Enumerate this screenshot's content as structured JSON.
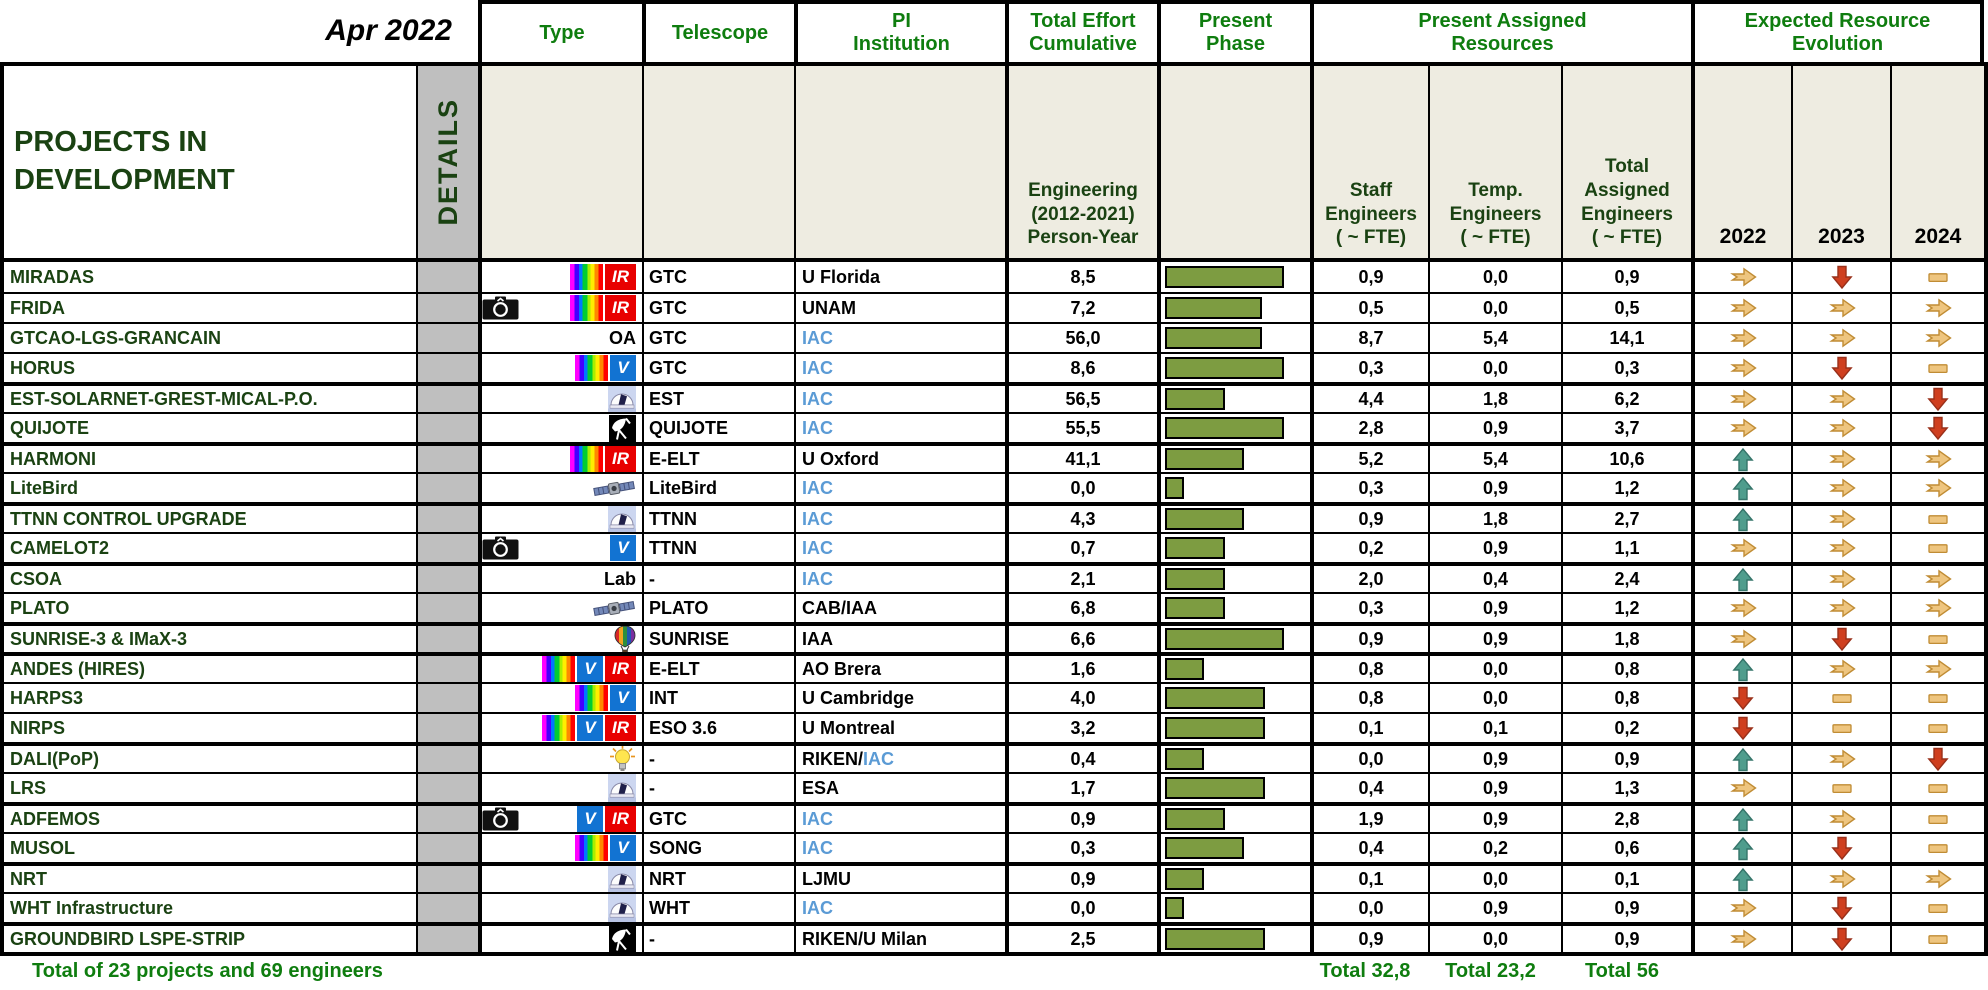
{
  "header": {
    "date_label": "Apr 2022",
    "title": "PROJECTS IN\nDEVELOPMENT",
    "details_label": "DETAILS",
    "columns": {
      "type": "Type",
      "telescope": "Telescope",
      "pi": "PI\nInstitution",
      "effort": "Total Effort\nCumulative",
      "phase": "Present\nPhase",
      "resources": "Present Assigned\nResources",
      "evolution": "Expected Resource\nEvolution"
    },
    "subcolumns": {
      "effort_sub": "Engineering\n(2012-2021)\nPerson-Year",
      "staff": "Staff\nEngineers\n( ~ FTE)",
      "temp": "Temp.\nEngineers\n( ~ FTE)",
      "total": "Total\nAssigned\nEngineers\n( ~ FTE)",
      "y2022": "2022",
      "y2023": "2023",
      "y2024": "2024"
    }
  },
  "colors": {
    "header_green": "#0f7d0f",
    "project_green": "#1a4212",
    "iac_blue": "#5b9bd5",
    "bar_green": "#7d9c41",
    "arrow_tan": "#eec57f",
    "arrow_red": "#cf3f1f",
    "arrow_teal": "#4f9d8d",
    "subheader_beige": "#eeece1",
    "details_gray": "#bfbfbf"
  },
  "rows": [
    {
      "name": "MIRADAS",
      "icons": [
        "spectrum",
        "ir"
      ],
      "type_text": "",
      "telescope": "GTC",
      "pi_black": "U Florida",
      "pi_blue": "",
      "effort": "8,5",
      "phase_pct": 80,
      "staff": "0,9",
      "temp": "0,0",
      "total": "0,9",
      "y2022": "right",
      "y2023": "down",
      "y2024": "flat",
      "group": false
    },
    {
      "name": "FRIDA",
      "icons": [
        "camera",
        "spectrum",
        "ir"
      ],
      "type_text": "",
      "telescope": "GTC",
      "pi_black": "UNAM",
      "pi_blue": "",
      "effort": "7,2",
      "phase_pct": 65,
      "staff": "0,5",
      "temp": "0,0",
      "total": "0,5",
      "y2022": "right",
      "y2023": "right",
      "y2024": "right",
      "group": false
    },
    {
      "name": "GTCAO-LGS-GRANCAIN",
      "icons": [],
      "type_text": "OA",
      "telescope": "GTC",
      "pi_black": "",
      "pi_blue": "IAC",
      "effort": "56,0",
      "phase_pct": 65,
      "staff": "8,7",
      "temp": "5,4",
      "total": "14,1",
      "y2022": "right",
      "y2023": "right",
      "y2024": "right",
      "group": false
    },
    {
      "name": "HORUS",
      "icons": [
        "spectrum",
        "v"
      ],
      "type_text": "",
      "telescope": "GTC",
      "pi_black": "",
      "pi_blue": "IAC",
      "effort": "8,6",
      "phase_pct": 80,
      "staff": "0,3",
      "temp": "0,0",
      "total": "0,3",
      "y2022": "right",
      "y2023": "down",
      "y2024": "flat",
      "group": false
    },
    {
      "name": "EST-SOLARNET-GREST-MICAL-P.O.",
      "icons": [
        "dome"
      ],
      "type_text": "",
      "telescope": "EST",
      "pi_black": "",
      "pi_blue": "IAC",
      "effort": "56,5",
      "phase_pct": 40,
      "staff": "4,4",
      "temp": "1,8",
      "total": "6,2",
      "y2022": "right",
      "y2023": "right",
      "y2024": "down",
      "group": true
    },
    {
      "name": "QUIJOTE",
      "icons": [
        "dish"
      ],
      "type_text": "",
      "telescope": "QUIJOTE",
      "pi_black": "",
      "pi_blue": "IAC",
      "effort": "55,5",
      "phase_pct": 80,
      "staff": "2,8",
      "temp": "0,9",
      "total": "3,7",
      "y2022": "right",
      "y2023": "right",
      "y2024": "down",
      "group": false
    },
    {
      "name": "HARMONI",
      "icons": [
        "spectrum",
        "ir"
      ],
      "type_text": "",
      "telescope": "E-ELT",
      "pi_black": "U Oxford",
      "pi_blue": "",
      "effort": "41,1",
      "phase_pct": 53,
      "staff": "5,2",
      "temp": "5,4",
      "total": "10,6",
      "y2022": "up",
      "y2023": "right",
      "y2024": "right",
      "group": true
    },
    {
      "name": "LiteBird",
      "icons": [
        "satellite"
      ],
      "type_text": "",
      "telescope": "LiteBird",
      "pi_black": "",
      "pi_blue": "IAC",
      "effort": "0,0",
      "phase_pct": 13,
      "staff": "0,3",
      "temp": "0,9",
      "total": "1,2",
      "y2022": "up",
      "y2023": "right",
      "y2024": "right",
      "group": false
    },
    {
      "name": "TTNN CONTROL UPGRADE",
      "icons": [
        "dome"
      ],
      "type_text": "",
      "telescope": "TTNN",
      "pi_black": "",
      "pi_blue": "IAC",
      "effort": "4,3",
      "phase_pct": 53,
      "staff": "0,9",
      "temp": "1,8",
      "total": "2,7",
      "y2022": "up",
      "y2023": "right",
      "y2024": "flat",
      "group": true
    },
    {
      "name": "CAMELOT2",
      "icons": [
        "camera",
        "v"
      ],
      "type_text": "",
      "telescope": "TTNN",
      "pi_black": "",
      "pi_blue": "IAC",
      "effort": "0,7",
      "phase_pct": 40,
      "staff": "0,2",
      "temp": "0,9",
      "total": "1,1",
      "y2022": "right",
      "y2023": "right",
      "y2024": "flat",
      "group": false
    },
    {
      "name": "CSOA",
      "icons": [],
      "type_text": "Lab",
      "telescope": "-",
      "pi_black": "",
      "pi_blue": "IAC",
      "effort": "2,1",
      "phase_pct": 40,
      "staff": "2,0",
      "temp": "0,4",
      "total": "2,4",
      "y2022": "up",
      "y2023": "right",
      "y2024": "right",
      "group": true
    },
    {
      "name": "PLATO",
      "icons": [
        "satellite"
      ],
      "type_text": "",
      "telescope": "PLATO",
      "pi_black": "CAB/IAA",
      "pi_blue": "",
      "effort": "6,8",
      "phase_pct": 40,
      "staff": "0,3",
      "temp": "0,9",
      "total": "1,2",
      "y2022": "right",
      "y2023": "right",
      "y2024": "right",
      "group": false
    },
    {
      "name": "SUNRISE-3 & IMaX-3",
      "icons": [
        "balloon"
      ],
      "type_text": "",
      "telescope": "SUNRISE",
      "pi_black": "IAA",
      "pi_blue": "",
      "effort": "6,6",
      "phase_pct": 80,
      "staff": "0,9",
      "temp": "0,9",
      "total": "1,8",
      "y2022": "right",
      "y2023": "down",
      "y2024": "flat",
      "group": true
    },
    {
      "name": "ANDES (HIRES)",
      "icons": [
        "spectrum",
        "v",
        "ir"
      ],
      "type_text": "",
      "telescope": "E-ELT",
      "pi_black": "AO Brera",
      "pi_blue": "",
      "effort": "1,6",
      "phase_pct": 26,
      "staff": "0,8",
      "temp": "0,0",
      "total": "0,8",
      "y2022": "up",
      "y2023": "right",
      "y2024": "right",
      "group": true
    },
    {
      "name": "HARPS3",
      "icons": [
        "spectrum",
        "v"
      ],
      "type_text": "",
      "telescope": "INT",
      "pi_black": "U Cambridge",
      "pi_blue": "",
      "effort": "4,0",
      "phase_pct": 67,
      "staff": "0,8",
      "temp": "0,0",
      "total": "0,8",
      "y2022": "down",
      "y2023": "flat",
      "y2024": "flat",
      "group": false
    },
    {
      "name": "NIRPS",
      "icons": [
        "spectrum",
        "v",
        "ir"
      ],
      "type_text": "",
      "telescope": "ESO 3.6",
      "pi_black": "U Montreal",
      "pi_blue": "",
      "effort": "3,2",
      "phase_pct": 67,
      "staff": "0,1",
      "temp": "0,1",
      "total": "0,2",
      "y2022": "down",
      "y2023": "flat",
      "y2024": "flat",
      "group": false
    },
    {
      "name": "DALI(PoP)",
      "icons": [
        "bulb"
      ],
      "type_text": "",
      "telescope": "-",
      "pi_black": "RIKEN/",
      "pi_blue": "IAC",
      "effort": "0,4",
      "phase_pct": 26,
      "staff": "0,0",
      "temp": "0,9",
      "total": "0,9",
      "y2022": "up",
      "y2023": "right",
      "y2024": "down",
      "group": true
    },
    {
      "name": "LRS",
      "icons": [
        "dome"
      ],
      "type_text": "",
      "telescope": "-",
      "pi_black": "ESA",
      "pi_blue": "",
      "effort": "1,7",
      "phase_pct": 67,
      "staff": "0,4",
      "temp": "0,9",
      "total": "1,3",
      "y2022": "right",
      "y2023": "flat",
      "y2024": "flat",
      "group": false
    },
    {
      "name": "ADFEMOS",
      "icons": [
        "camera",
        "v",
        "ir"
      ],
      "type_text": "",
      "telescope": "GTC",
      "pi_black": "",
      "pi_blue": "IAC",
      "effort": "0,9",
      "phase_pct": 40,
      "staff": "1,9",
      "temp": "0,9",
      "total": "2,8",
      "y2022": "up",
      "y2023": "right",
      "y2024": "flat",
      "group": true
    },
    {
      "name": "MUSOL",
      "icons": [
        "spectrum",
        "v"
      ],
      "type_text": "",
      "telescope": "SONG",
      "pi_black": "",
      "pi_blue": "IAC",
      "effort": "0,3",
      "phase_pct": 53,
      "staff": "0,4",
      "temp": "0,2",
      "total": "0,6",
      "y2022": "up",
      "y2023": "down",
      "y2024": "flat",
      "group": false
    },
    {
      "name": "NRT",
      "icons": [
        "dome"
      ],
      "type_text": "",
      "telescope": "NRT",
      "pi_black": "LJMU",
      "pi_blue": "",
      "effort": "0,9",
      "phase_pct": 26,
      "staff": "0,1",
      "temp": "0,0",
      "total": "0,1",
      "y2022": "up",
      "y2023": "right",
      "y2024": "right",
      "group": true
    },
    {
      "name": "WHT Infrastructure",
      "icons": [
        "dome"
      ],
      "type_text": "",
      "telescope": "WHT",
      "pi_black": "",
      "pi_blue": "IAC",
      "effort": "0,0",
      "phase_pct": 13,
      "staff": "0,0",
      "temp": "0,9",
      "total": "0,9",
      "y2022": "right",
      "y2023": "down",
      "y2024": "flat",
      "group": false
    },
    {
      "name": "GROUNDBIRD LSPE-STRIP",
      "icons": [
        "dish"
      ],
      "type_text": "",
      "telescope": "-",
      "pi_black": "RIKEN/U Milan",
      "pi_blue": "",
      "effort": "2,5",
      "phase_pct": 67,
      "staff": "0,9",
      "temp": "0,0",
      "total": "0,9",
      "y2022": "right",
      "y2023": "down",
      "y2024": "flat",
      "group": true
    }
  ],
  "footer": {
    "summary": "Total of 23 projects and 69 engineers",
    "staff_total": "Total 32,8",
    "temp_total": "Total 23,2",
    "assigned_total": "Total 56"
  }
}
